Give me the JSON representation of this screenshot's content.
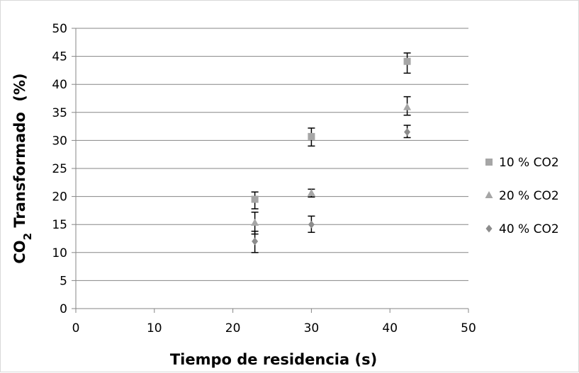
{
  "chart_data": {
    "type": "scatter",
    "title": "",
    "xlabel": "Tiempo de residencia (s)",
    "ylabel_main": "CO",
    "ylabel_sub": "2",
    "ylabel_rest": " Transformado  (%)",
    "xlim": [
      0,
      50
    ],
    "ylim": [
      0,
      50
    ],
    "xticks": [
      0,
      10,
      20,
      30,
      40,
      50
    ],
    "yticks": [
      0,
      5,
      10,
      15,
      20,
      25,
      30,
      35,
      40,
      45,
      50
    ],
    "grid": "horizontal",
    "legend_position": "right",
    "series": [
      {
        "name": "10 % CO2",
        "marker": "square",
        "color": "#a6a6a6",
        "points": [
          {
            "x": 22.8,
            "y": 19.5,
            "err_low": 17.8,
            "err_high": 20.8
          },
          {
            "x": 30.0,
            "y": 30.7,
            "err_low": 29.0,
            "err_high": 32.2
          },
          {
            "x": 42.2,
            "y": 44.1,
            "err_low": 42.0,
            "err_high": 45.6
          }
        ]
      },
      {
        "name": "20 % CO2",
        "marker": "triangle",
        "color": "#a6a6a6",
        "points": [
          {
            "x": 22.8,
            "y": 15.3,
            "err_low": 13.3,
            "err_high": 17.2
          },
          {
            "x": 30.0,
            "y": 20.6,
            "err_low": 19.9,
            "err_high": 21.3
          },
          {
            "x": 42.2,
            "y": 35.9,
            "err_low": 34.5,
            "err_high": 37.8
          }
        ]
      },
      {
        "name": "40 % CO2",
        "marker": "diamond",
        "color": "#8c8c8c",
        "points": [
          {
            "x": 22.8,
            "y": 12.0,
            "err_low": 10.0,
            "err_high": 13.8
          },
          {
            "x": 30.0,
            "y": 15.0,
            "err_low": 13.6,
            "err_high": 16.5
          },
          {
            "x": 42.2,
            "y": 31.5,
            "err_low": 30.5,
            "err_high": 32.7
          }
        ]
      }
    ]
  }
}
